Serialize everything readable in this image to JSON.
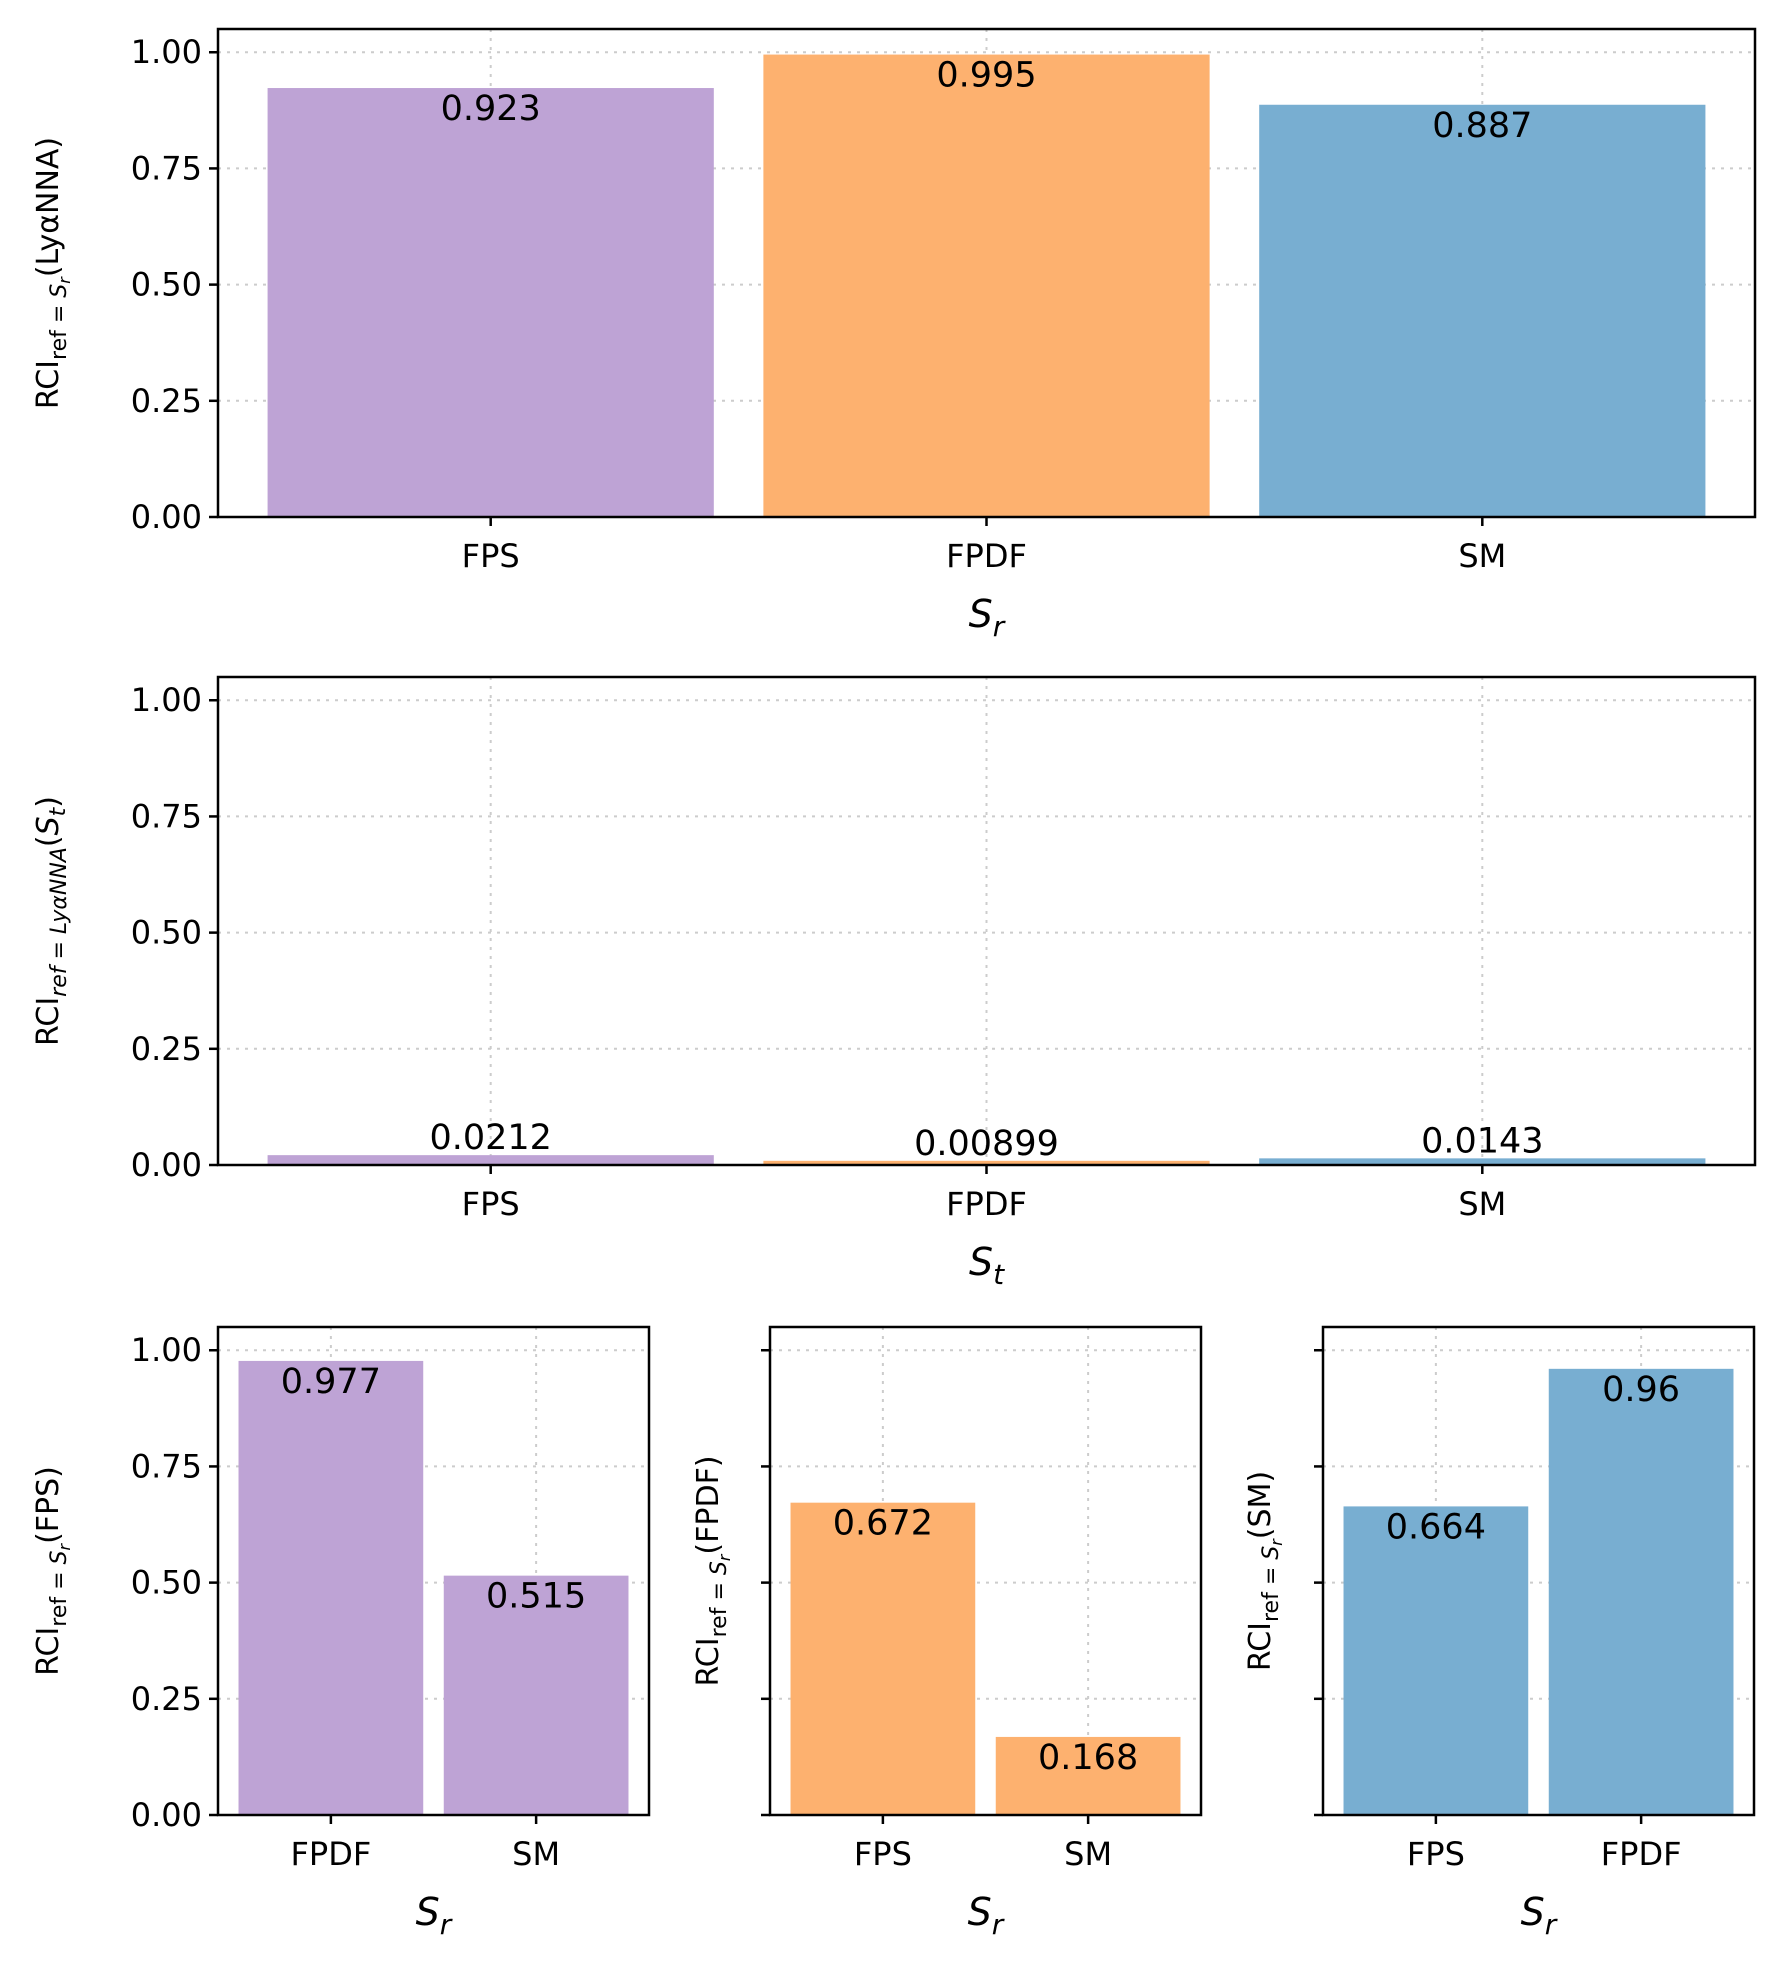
{
  "colors": {
    "purple": "#bea3d5",
    "orange": "#fdb16f",
    "blue": "#78aed1"
  },
  "chart_data": [
    {
      "id": "p1",
      "type": "bar",
      "categories": [
        "FPS",
        "FPDF",
        "SM"
      ],
      "values": [
        0.923,
        0.995,
        0.887
      ],
      "value_labels": [
        "0.923",
        "0.995",
        "0.887"
      ],
      "colors": [
        "purple",
        "orange",
        "blue"
      ],
      "xlabel": "S_r",
      "ylabel": {
        "main": "RCI",
        "sub": "ref = S_r",
        "arg": "(LyαNNA)"
      },
      "ylim": [
        0,
        1.05
      ],
      "yticks": [
        0,
        0.25,
        0.5,
        0.75,
        1.0
      ],
      "ytick_labels": [
        "0.00",
        "0.25",
        "0.50",
        "0.75",
        "1.00"
      ],
      "grid": true,
      "label_position": "inside-top"
    },
    {
      "id": "p2",
      "type": "bar",
      "categories": [
        "FPS",
        "FPDF",
        "SM"
      ],
      "values": [
        0.0212,
        0.00899,
        0.0143
      ],
      "value_labels": [
        "0.0212",
        "0.00899",
        "0.0143"
      ],
      "colors": [
        "purple",
        "orange",
        "blue"
      ],
      "xlabel": "S_t",
      "ylabel": {
        "main": "RCI",
        "sub": "ref = LyαNNA",
        "arg": "(S_t)"
      },
      "ylim": [
        0,
        1.05
      ],
      "yticks": [
        0,
        0.25,
        0.5,
        0.75,
        1.0
      ],
      "ytick_labels": [
        "0.00",
        "0.25",
        "0.50",
        "0.75",
        "1.00"
      ],
      "grid": true,
      "label_position": "above"
    },
    {
      "id": "p3",
      "type": "bar",
      "categories": [
        "FPDF",
        "SM"
      ],
      "values": [
        0.977,
        0.515
      ],
      "value_labels": [
        "0.977",
        "0.515"
      ],
      "colors": [
        "purple",
        "purple"
      ],
      "xlabel": "S_r",
      "ylabel": {
        "main": "RCI",
        "sub": "ref = S_r",
        "arg": "(FPS)"
      },
      "ylim": [
        0,
        1.05
      ],
      "yticks": [
        0,
        0.25,
        0.5,
        0.75,
        1.0
      ],
      "ytick_labels": [
        "0.00",
        "0.25",
        "0.50",
        "0.75",
        "1.00"
      ],
      "grid": true,
      "label_position": "inside-top"
    },
    {
      "id": "p4",
      "type": "bar",
      "categories": [
        "FPS",
        "SM"
      ],
      "values": [
        0.672,
        0.168
      ],
      "value_labels": [
        "0.672",
        "0.168"
      ],
      "colors": [
        "orange",
        "orange"
      ],
      "xlabel": "S_r",
      "ylabel": {
        "main": "RCI",
        "sub": "ref = S_r",
        "arg": "(FPDF)"
      },
      "ylim": [
        0,
        1.05
      ],
      "yticks": [
        0,
        0.25,
        0.5,
        0.75,
        1.0
      ],
      "ytick_labels": [
        "",
        "",
        "",
        "",
        ""
      ],
      "grid": true,
      "label_position": "inside-top"
    },
    {
      "id": "p5",
      "type": "bar",
      "categories": [
        "FPS",
        "FPDF"
      ],
      "values": [
        0.664,
        0.96
      ],
      "value_labels": [
        "0.664",
        "0.96"
      ],
      "colors": [
        "blue",
        "blue"
      ],
      "xlabel": "S_r",
      "ylabel": {
        "main": "RCI",
        "sub": "ref = S_r",
        "arg": "(SM)"
      },
      "ylim": [
        0,
        1.05
      ],
      "yticks": [
        0,
        0.25,
        0.5,
        0.75,
        1.0
      ],
      "ytick_labels": [
        "",
        "",
        "",
        "",
        ""
      ],
      "grid": true,
      "label_position": "inside-top"
    }
  ]
}
